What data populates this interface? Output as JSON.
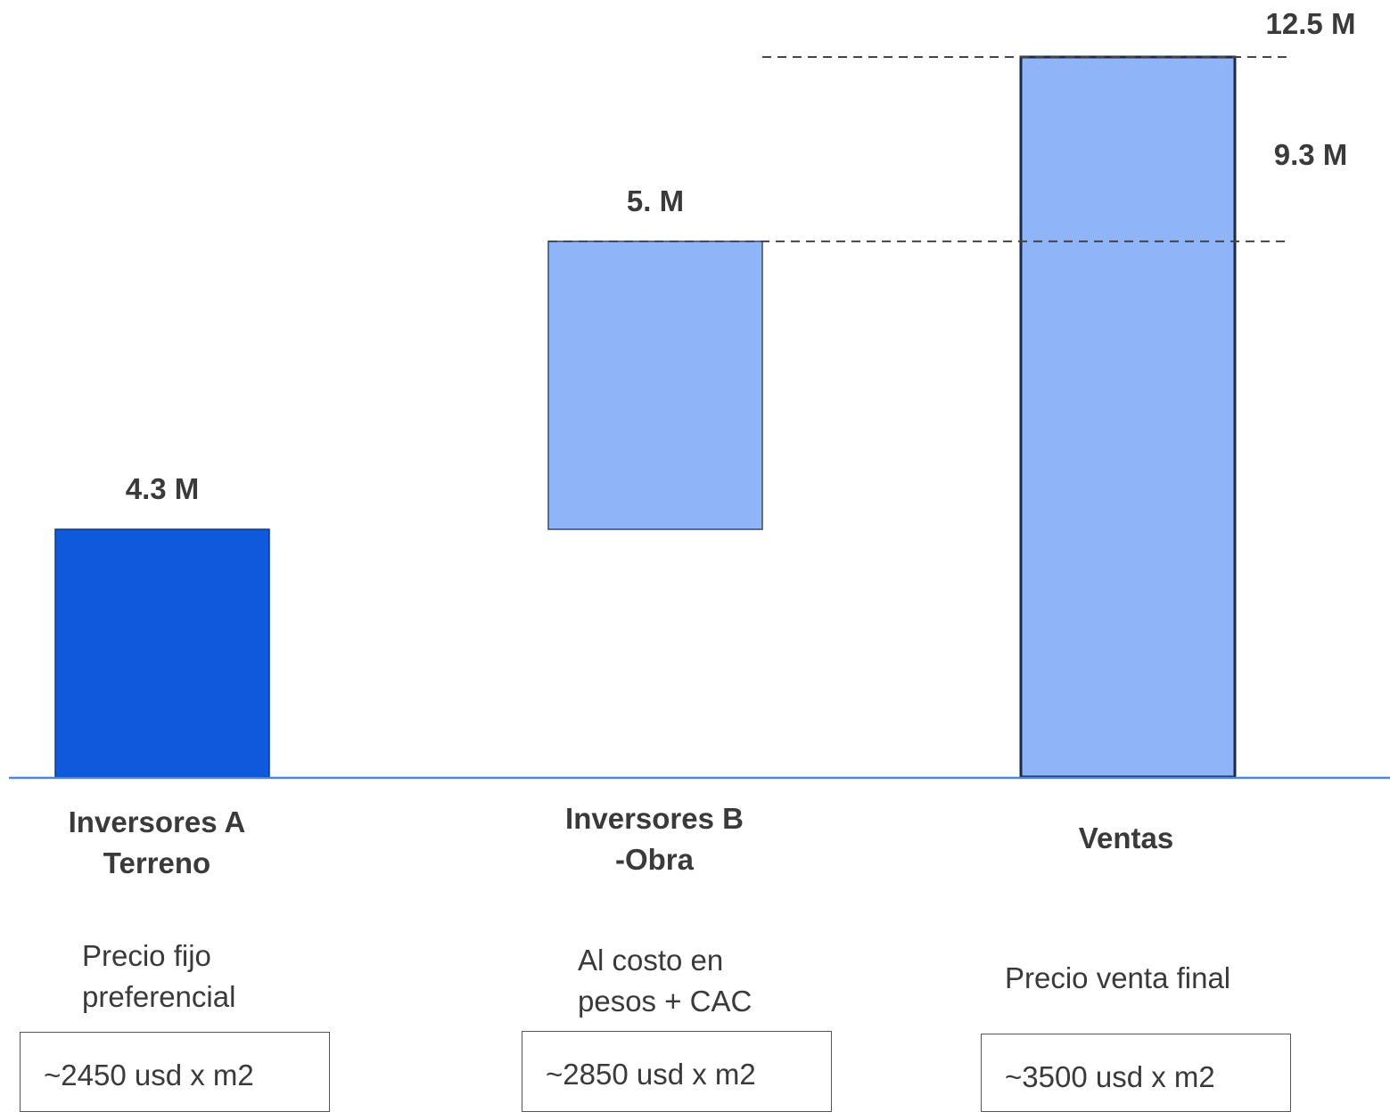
{
  "chart_data": {
    "type": "bar",
    "subtype": "waterfall",
    "categories": [
      "Inversores A\nTerreno",
      "Inversores B\n-Obra",
      "Ventas"
    ],
    "bars": [
      {
        "category": "Inversores A\nTerreno",
        "base": 0,
        "top": 4.3,
        "label": "4.3 M",
        "color": "#0f5adc",
        "border": "#0a3a8c"
      },
      {
        "category": "Inversores B\n-Obra",
        "base": 4.3,
        "top": 9.3,
        "label": "5. M",
        "color": "#8fb4f8",
        "border": "#3a4a6a"
      },
      {
        "category": "Ventas",
        "base": 0,
        "top": 12.5,
        "label": "12.5 M",
        "color": "#8fb4f8",
        "border": "#1a2a4a"
      }
    ],
    "reference_lines": [
      {
        "value": 12.5,
        "label": "12.5 M"
      },
      {
        "value": 9.3,
        "label": "9.3 M"
      }
    ],
    "ylim": [
      0,
      12.5
    ],
    "grid": false,
    "legend": false,
    "axis_color": "#4a86e0"
  },
  "notes": [
    {
      "text": "Precio fijo\npreferencial",
      "box": "~2450 usd x m2"
    },
    {
      "text": "Al costo en\npesos + CAC",
      "box": "~2850 usd x m2"
    },
    {
      "text": "Precio venta final",
      "box": "~3500 usd x m2"
    }
  ]
}
